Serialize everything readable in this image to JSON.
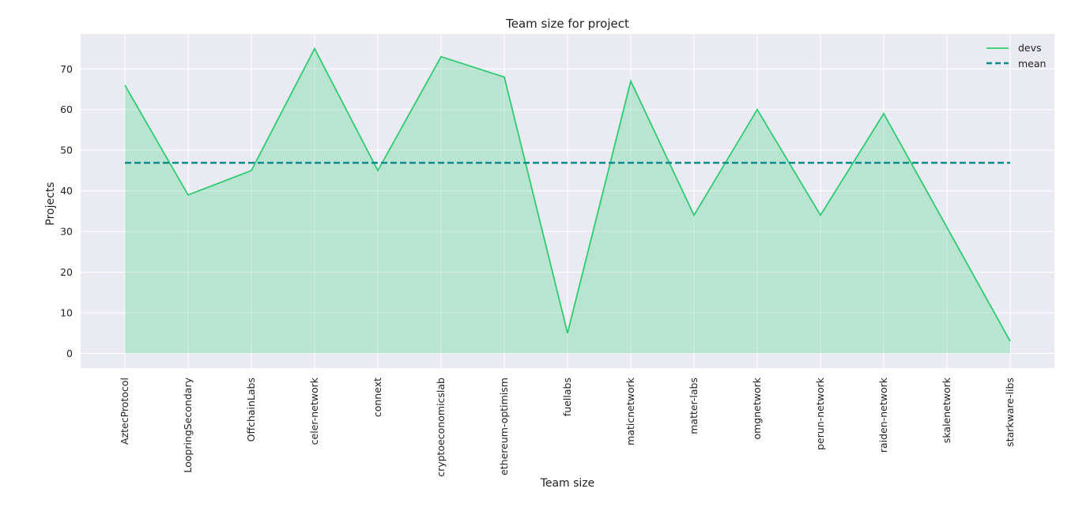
{
  "chart_data": {
    "type": "area",
    "title": "Team size for project",
    "xlabel": "Team size",
    "ylabel": "Projects",
    "categories": [
      "AztecProtocol",
      "LoopringSecondary",
      "OffchainLabs",
      "celer-network",
      "connext",
      "cryptoeconomicslab",
      "ethereum-optimism",
      "fuellabs",
      "maticnetwork",
      "matter-labs",
      "omgnetwork",
      "perun-network",
      "raiden-network",
      "skalenetwork",
      "starkware-libs"
    ],
    "series": [
      {
        "name": "devs",
        "values": [
          66,
          39,
          45,
          75,
          45,
          73,
          68,
          5,
          67,
          34,
          60,
          34,
          59,
          31,
          3
        ],
        "color": "#2ecc71",
        "fill": "#b9e4d2"
      },
      {
        "name": "mean",
        "value": 46.9,
        "style": "dashed",
        "color": "#0e8c8c"
      }
    ],
    "ylim": [
      -3.6,
      78.6
    ],
    "yticks": [
      "0",
      "10",
      "20",
      "30",
      "40",
      "50",
      "60",
      "70"
    ],
    "grid": true,
    "legend": "top-right",
    "background": "#eaeaf2"
  }
}
